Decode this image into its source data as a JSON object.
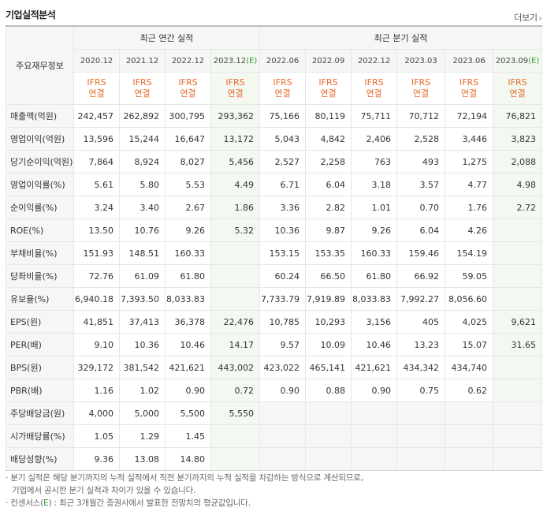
{
  "header": {
    "title": "기업실적분석",
    "more_label": "더보기",
    "more_icon": "chevron-right"
  },
  "table": {
    "label_header": "주요재무정보",
    "group_annual": "최근 연간 실적",
    "group_quarter": "최근 분기 실적",
    "periods": [
      {
        "label": "2020.12",
        "cons": ""
      },
      {
        "label": "2021.12",
        "cons": ""
      },
      {
        "label": "2022.12",
        "cons": ""
      },
      {
        "label": "2023.12",
        "cons": "(E)"
      },
      {
        "label": "2022.06",
        "cons": ""
      },
      {
        "label": "2022.09",
        "cons": ""
      },
      {
        "label": "2022.12",
        "cons": ""
      },
      {
        "label": "2023.03",
        "cons": ""
      },
      {
        "label": "2023.06",
        "cons": ""
      },
      {
        "label": "2023.09",
        "cons": "(E)"
      }
    ],
    "basis_top": "IFRS",
    "basis_bottom": "연결",
    "rows": [
      {
        "label": "매출액(억원)",
        "values": [
          "242,457",
          "262,892",
          "300,795",
          "293,362",
          "75,166",
          "80,119",
          "75,711",
          "70,712",
          "72,194",
          "76,821"
        ]
      },
      {
        "label": "영업이익(억원)",
        "values": [
          "13,596",
          "15,244",
          "16,647",
          "13,172",
          "5,043",
          "4,842",
          "2,406",
          "2,528",
          "3,446",
          "3,823"
        ]
      },
      {
        "label": "당기순이익(억원)",
        "values": [
          "7,864",
          "8,924",
          "8,027",
          "5,456",
          "2,527",
          "2,258",
          "763",
          "493",
          "1,275",
          "2,088"
        ]
      },
      {
        "label": "영업이익률(%)",
        "values": [
          "5.61",
          "5.80",
          "5.53",
          "4.49",
          "6.71",
          "6.04",
          "3.18",
          "3.57",
          "4.77",
          "4.98"
        ]
      },
      {
        "label": "순이익률(%)",
        "values": [
          "3.24",
          "3.40",
          "2.67",
          "1.86",
          "3.36",
          "2.82",
          "1.01",
          "0.70",
          "1.76",
          "2.72"
        ]
      },
      {
        "label": "ROE(%)",
        "values": [
          "13.50",
          "10.76",
          "9.26",
          "5.32",
          "10.36",
          "9.87",
          "9.26",
          "6.04",
          "4.26",
          ""
        ]
      },
      {
        "label": "부채비율(%)",
        "values": [
          "151.93",
          "148.51",
          "160.33",
          "",
          "153.15",
          "153.35",
          "160.33",
          "159.46",
          "154.19",
          ""
        ]
      },
      {
        "label": "당좌비율(%)",
        "values": [
          "72.76",
          "61.09",
          "61.80",
          "",
          "60.24",
          "66.50",
          "61.80",
          "66.92",
          "59.05",
          ""
        ]
      },
      {
        "label": "유보율(%)",
        "values": [
          "6,940.18",
          "7,393.50",
          "8,033.83",
          "",
          "7,733.79",
          "7,919.89",
          "8,033.83",
          "7,992.27",
          "8,056.60",
          ""
        ]
      },
      {
        "label": "EPS(원)",
        "values": [
          "41,851",
          "37,413",
          "36,378",
          "22,476",
          "10,785",
          "10,293",
          "3,156",
          "405",
          "4,025",
          "9,621"
        ]
      },
      {
        "label": "PER(배)",
        "values": [
          "9.10",
          "10.36",
          "10.46",
          "14.17",
          "9.57",
          "10.09",
          "10.46",
          "13.23",
          "15.07",
          "31.65"
        ]
      },
      {
        "label": "BPS(원)",
        "values": [
          "329,172",
          "381,542",
          "421,621",
          "443,002",
          "423,022",
          "465,141",
          "421,621",
          "434,342",
          "434,740",
          ""
        ]
      },
      {
        "label": "PBR(배)",
        "values": [
          "1.16",
          "1.02",
          "0.90",
          "0.72",
          "0.90",
          "0.88",
          "0.90",
          "0.75",
          "0.62",
          ""
        ]
      },
      {
        "label": "주당배당금(원)",
        "values": [
          "4,000",
          "5,000",
          "5,500",
          "5,550",
          "",
          "",
          "",
          "",
          "",
          ""
        ]
      },
      {
        "label": "시가배당률(%)",
        "values": [
          "1.05",
          "1.29",
          "1.45",
          "",
          "",
          "",
          "",
          "",
          "",
          ""
        ]
      },
      {
        "label": "배당성향(%)",
        "values": [
          "9.36",
          "13.08",
          "14.80",
          "",
          "",
          "",
          "",
          "",
          "",
          ""
        ]
      }
    ]
  },
  "notes": {
    "line1": "분기 실적은 해당 분기까지의 누적 실적에서 직전 분기까지의 누적 실적을 차감하는 방식으로 계산되므로,",
    "line2": "기업에서 공시한 분기 실적과 차이가 있을 수 있습니다.",
    "line3_prefix": "컨센서스(",
    "line3_e": "E",
    "line3_suffix": ") : 최근 3개월간 증권사에서 발표한 전망치의 평균값입니다."
  },
  "colors": {
    "basis_orange": "#e8692a",
    "consensus_green": "#3a9b3a",
    "consensus_bg": "#f3f9f1"
  }
}
